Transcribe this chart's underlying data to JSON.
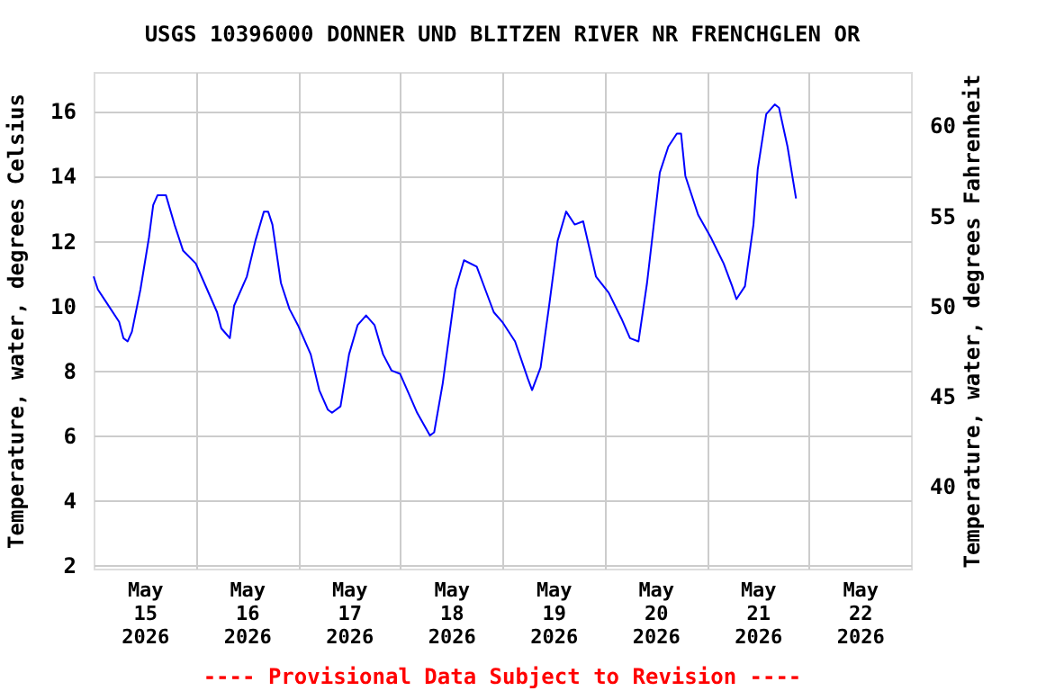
{
  "chart_data": {
    "type": "line",
    "title": "USGS 10396000 DONNER UND BLITZEN RIVER NR FRENCHGLEN OR",
    "xlim": [
      "2026-05-15T00:00",
      "2026-05-23T00:00"
    ],
    "xticks": [
      {
        "value": "2026-05-15T12:00",
        "label": "May\n15\n2026"
      },
      {
        "value": "2026-05-16T12:00",
        "label": "May\n16\n2026"
      },
      {
        "value": "2026-05-17T12:00",
        "label": "May\n17\n2026"
      },
      {
        "value": "2026-05-18T12:00",
        "label": "May\n18\n2026"
      },
      {
        "value": "2026-05-19T12:00",
        "label": "May\n19\n2026"
      },
      {
        "value": "2026-05-20T12:00",
        "label": "May\n20\n2026"
      },
      {
        "value": "2026-05-21T12:00",
        "label": "May\n21\n2026"
      },
      {
        "value": "2026-05-22T12:00",
        "label": "May\n22\n2026"
      },
      {
        "value": "2026-05-16T00:00",
        "label": null
      },
      {
        "value": "2026-05-17T00:00",
        "label": null
      },
      {
        "value": "2026-05-18T00:00",
        "label": null
      },
      {
        "value": "2026-05-19T00:00",
        "label": null
      },
      {
        "value": "2026-05-20T00:00",
        "label": null
      },
      {
        "value": "2026-05-21T00:00",
        "label": null
      },
      {
        "value": "2026-05-22T00:00",
        "label": null
      }
    ],
    "ylim": [
      1.9,
      17.2
    ],
    "yticks": [
      2,
      4,
      6,
      8,
      10,
      12,
      14,
      16
    ],
    "y2lim": [
      35.42,
      62.96
    ],
    "y2ticks": [
      40,
      45,
      50,
      55,
      60
    ],
    "ylabel": "Temperature, water, degrees Celsius",
    "y2label": "Temperature, water, degrees Fahrenheit",
    "grid": true,
    "line_style": "solid",
    "marker": "none",
    "annotations": [
      "---- Provisional Data Subject to Revision ----"
    ],
    "x": [
      "2026-05-15T00:00",
      "2026-05-15T01:00",
      "2026-05-15T03:00",
      "2026-05-15T06:00",
      "2026-05-15T07:00",
      "2026-05-15T08:00",
      "2026-05-15T09:00",
      "2026-05-15T11:00",
      "2026-05-15T13:00",
      "2026-05-15T14:00",
      "2026-05-15T15:00",
      "2026-05-15T17:00",
      "2026-05-15T19:00",
      "2026-05-15T21:00",
      "2026-05-16T00:00",
      "2026-05-16T02:00",
      "2026-05-16T05:00",
      "2026-05-16T06:00",
      "2026-05-16T08:00",
      "2026-05-16T09:00",
      "2026-05-16T12:00",
      "2026-05-16T14:00",
      "2026-05-16T16:00",
      "2026-05-16T17:00",
      "2026-05-16T18:00",
      "2026-05-16T20:00",
      "2026-05-16T22:00",
      "2026-05-17T00:00",
      "2026-05-17T03:00",
      "2026-05-17T05:00",
      "2026-05-17T07:00",
      "2026-05-17T08:00",
      "2026-05-17T10:00",
      "2026-05-17T12:00",
      "2026-05-17T14:00",
      "2026-05-17T16:00",
      "2026-05-17T18:00",
      "2026-05-17T20:00",
      "2026-05-17T22:00",
      "2026-05-18T00:00",
      "2026-05-18T02:00",
      "2026-05-18T04:00",
      "2026-05-18T07:00",
      "2026-05-18T08:00",
      "2026-05-18T10:00",
      "2026-05-18T13:00",
      "2026-05-18T15:00",
      "2026-05-18T18:00",
      "2026-05-18T20:00",
      "2026-05-18T22:00",
      "2026-05-19T00:00",
      "2026-05-19T03:00",
      "2026-05-19T06:00",
      "2026-05-19T07:00",
      "2026-05-19T09:00",
      "2026-05-19T11:00",
      "2026-05-19T13:00",
      "2026-05-19T15:00",
      "2026-05-19T17:00",
      "2026-05-19T19:00",
      "2026-05-19T22:00",
      "2026-05-20T01:00",
      "2026-05-20T04:00",
      "2026-05-20T06:00",
      "2026-05-20T08:00",
      "2026-05-20T10:00",
      "2026-05-20T13:00",
      "2026-05-20T15:00",
      "2026-05-20T17:00",
      "2026-05-20T18:00",
      "2026-05-20T19:00",
      "2026-05-20T22:00",
      "2026-05-21T01:00",
      "2026-05-21T04:00",
      "2026-05-21T06:00",
      "2026-05-21T07:00",
      "2026-05-21T09:00",
      "2026-05-21T11:00",
      "2026-05-21T12:00",
      "2026-05-21T14:00",
      "2026-05-21T16:00",
      "2026-05-21T17:00",
      "2026-05-21T19:00",
      "2026-05-21T21:00"
    ],
    "series": [
      {
        "color": "#0000ff",
        "values": [
          10.9,
          10.5,
          10.1,
          9.5,
          9.0,
          8.9,
          9.2,
          10.5,
          12.1,
          13.1,
          13.4,
          13.4,
          12.5,
          11.7,
          11.3,
          10.7,
          9.8,
          9.3,
          9.0,
          10.0,
          10.9,
          12.0,
          12.9,
          12.9,
          12.5,
          10.7,
          9.9,
          9.4,
          8.5,
          7.4,
          6.8,
          6.7,
          6.9,
          8.5,
          9.4,
          9.7,
          9.4,
          8.5,
          8.0,
          7.9,
          7.3,
          6.7,
          6.0,
          6.1,
          7.6,
          10.5,
          11.4,
          11.2,
          10.5,
          9.8,
          9.5,
          8.9,
          7.75,
          7.4,
          8.1,
          10.0,
          12.0,
          12.9,
          12.5,
          12.6,
          10.9,
          10.4,
          9.6,
          9.0,
          8.9,
          10.7,
          14.1,
          14.9,
          15.3,
          15.3,
          14.0,
          12.8,
          12.1,
          11.3,
          10.6,
          10.2,
          10.6,
          12.5,
          14.2,
          15.9,
          16.2,
          16.1,
          14.9,
          13.3
        ]
      }
    ]
  }
}
